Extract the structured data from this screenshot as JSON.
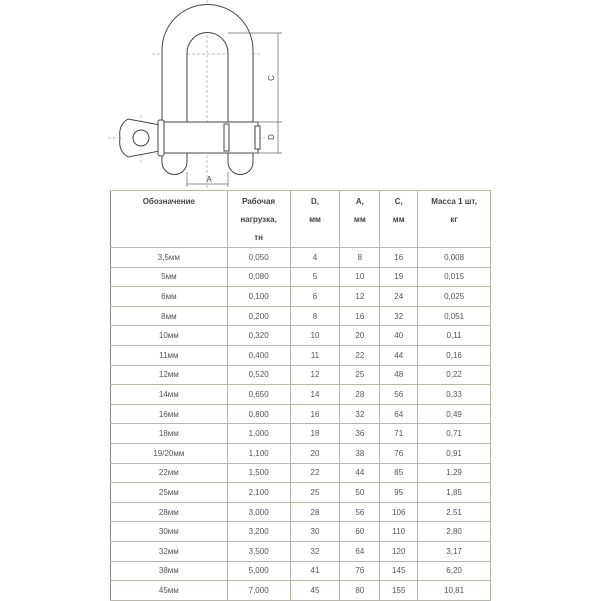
{
  "drawing": {
    "labels": {
      "a": "A",
      "c": "C",
      "d": "D"
    }
  },
  "table": {
    "headers": [
      {
        "lines": [
          "Обозначение"
        ]
      },
      {
        "lines": [
          "Рабочая",
          "нагрузка,",
          "тн"
        ]
      },
      {
        "lines": [
          "D,",
          "мм"
        ]
      },
      {
        "lines": [
          "A,",
          "мм"
        ]
      },
      {
        "lines": [
          "C,",
          "мм"
        ]
      },
      {
        "lines": [
          "Масса 1 шт,",
          "кг"
        ]
      }
    ],
    "rows": [
      [
        "3,5мм",
        "0,050",
        "4",
        "8",
        "16",
        "0,008"
      ],
      [
        "5мм",
        "0,080",
        "5",
        "10",
        "19",
        "0,015"
      ],
      [
        "6мм",
        "0,100",
        "6",
        "12",
        "24",
        "0,025"
      ],
      [
        "8мм",
        "0,200",
        "8",
        "16",
        "32",
        "0,051"
      ],
      [
        "10мм",
        "0,320",
        "10",
        "20",
        "40",
        "0,11"
      ],
      [
        "11мм",
        "0,400",
        "11",
        "22",
        "44",
        "0,16"
      ],
      [
        "12мм",
        "0,520",
        "12",
        "25",
        "48",
        "0,22"
      ],
      [
        "14мм",
        "0,650",
        "14",
        "28",
        "56",
        "0,33"
      ],
      [
        "16мм",
        "0,800",
        "16",
        "32",
        "64",
        "0,49"
      ],
      [
        "18мм",
        "1,000",
        "18",
        "36",
        "71",
        "0,71"
      ],
      [
        "19/20мм",
        "1,100",
        "20",
        "38",
        "76",
        "0,91"
      ],
      [
        "22мм",
        "1,500",
        "22",
        "44",
        "85",
        "1,29"
      ],
      [
        "25мм",
        "2,100",
        "25",
        "50",
        "95",
        "1,85"
      ],
      [
        "28мм",
        "3,000",
        "28",
        "56",
        "106",
        "2,51"
      ],
      [
        "30мм",
        "3,200",
        "30",
        "60",
        "110",
        "2,80"
      ],
      [
        "32мм",
        "3,500",
        "32",
        "64",
        "120",
        "3,17"
      ],
      [
        "38мм",
        "5,000",
        "41",
        "76",
        "145",
        "6,20"
      ],
      [
        "45мм",
        "7,000",
        "45",
        "80",
        "155",
        "10,81"
      ]
    ]
  }
}
